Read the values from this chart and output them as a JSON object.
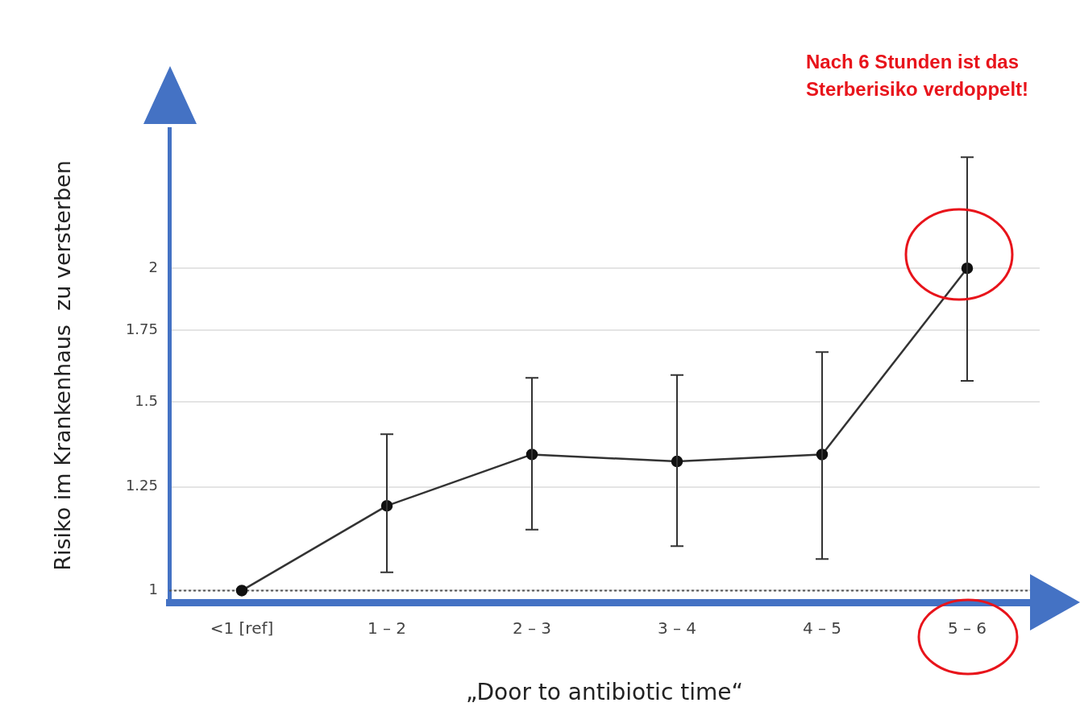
{
  "chart_data": {
    "type": "line",
    "xlabel": "„Door to antibiotic time“",
    "ylabel": "Risiko im Krankenhaus  zu versterben",
    "categories": [
      "<1 [ref]",
      "1 – 2",
      "2 – 3",
      "3 – 4",
      "4 – 5",
      "5 – 6"
    ],
    "series": [
      {
        "color": "#333333",
        "values": [
          1,
          1.2,
          1.34,
          1.32,
          1.34,
          2.0
        ],
        "errors": [
          null,
          [
            1.04,
            1.4
          ],
          [
            1.14,
            1.58
          ],
          [
            1.1,
            1.59
          ],
          [
            1.07,
            1.67
          ],
          [
            1.57,
            2.54
          ]
        ]
      }
    ],
    "log": "y",
    "ylim": [
      0.975,
      2.7
    ],
    "yticks": [
      1,
      1.25,
      1.5,
      1.75,
      2
    ],
    "grid": "y",
    "marker": "circle",
    "line_style": "solid",
    "legend": false,
    "ref_lines": [
      {
        "axis": "y",
        "value": 1,
        "line_style": "dotted",
        "color": "#555555"
      }
    ],
    "annotations": [
      "Nach 6 Stunden ist das Sterberisiko verdoppelt!"
    ]
  }
}
